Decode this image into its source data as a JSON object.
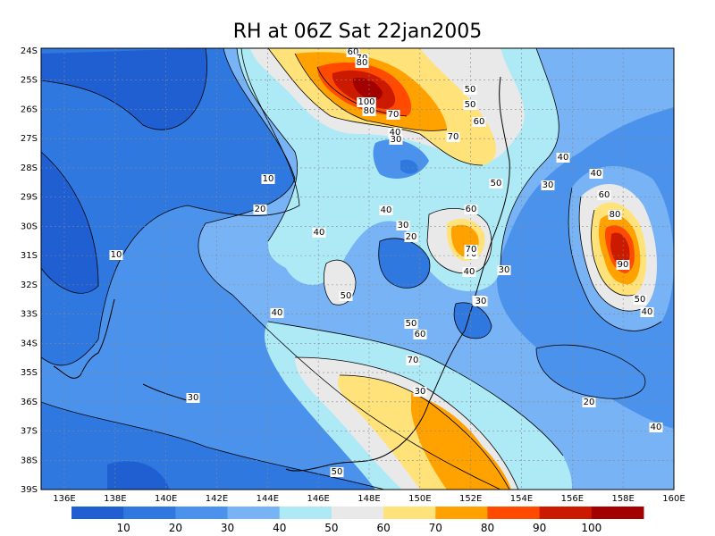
{
  "title": "RH at 06Z Sat 22jan2005",
  "lat_labels": [
    "24S",
    "25S",
    "26S",
    "27S",
    "28S",
    "29S",
    "30S",
    "31S",
    "32S",
    "33S",
    "34S",
    "35S",
    "36S",
    "37S",
    "38S",
    "39S"
  ],
  "lon_labels": [
    "136E",
    "138E",
    "140E",
    "142E",
    "144E",
    "146E",
    "148E",
    "150E",
    "152E",
    "154E",
    "156E",
    "158E",
    "160E"
  ],
  "contour_labels": [
    "60",
    "70",
    "80",
    "100",
    "80",
    "70",
    "40",
    "50",
    "30",
    "40",
    "50",
    "60",
    "70",
    "40",
    "30",
    "40",
    "10",
    "20",
    "10",
    "40",
    "50",
    "30",
    "20",
    "60",
    "70",
    "40",
    "30",
    "50",
    "60",
    "80",
    "90",
    "70",
    "50",
    "40",
    "20",
    "30",
    "40",
    "50",
    "60",
    "70",
    "30",
    "30",
    "20",
    "40",
    "50"
  ],
  "colorbar": {
    "ticks": [
      "10",
      "20",
      "30",
      "40",
      "50",
      "60",
      "70",
      "80",
      "90",
      "100"
    ],
    "colors": [
      "#1f5fd1",
      "#2f78e0",
      "#4a92ec",
      "#78b4f5",
      "#aeeaf6",
      "#e9e9e9",
      "#ffe27a",
      "#ffa200",
      "#ff4a00",
      "#cc1a00",
      "#a30000"
    ]
  }
}
